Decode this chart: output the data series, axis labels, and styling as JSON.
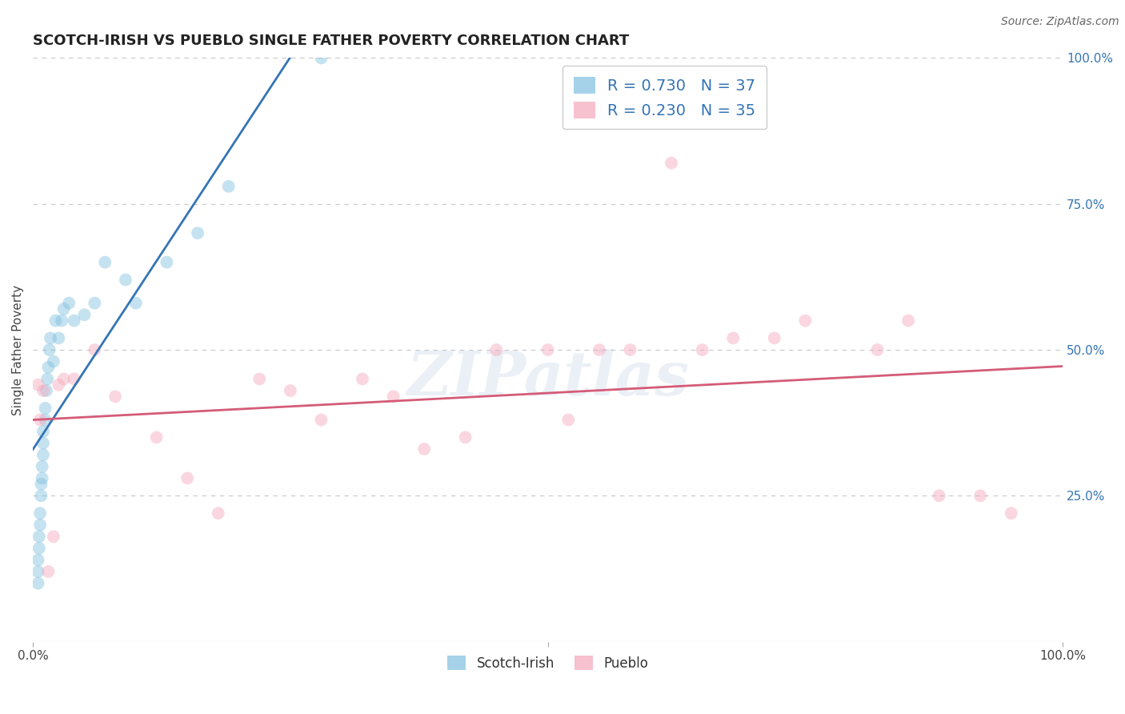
{
  "title": "SCOTCH-IRISH VS PUEBLO SINGLE FATHER POVERTY CORRELATION CHART",
  "source": "Source: ZipAtlas.com",
  "ylabel": "Single Father Poverty",
  "watermark": "ZIPatlas",
  "xmin": 0.0,
  "xmax": 1.0,
  "ymin": 0.0,
  "ymax": 1.0,
  "ytick_right_labels": [
    "100.0%",
    "75.0%",
    "50.0%",
    "25.0%"
  ],
  "ytick_right_vals": [
    1.0,
    0.75,
    0.5,
    0.25
  ],
  "scotch_irish_color": "#7fbfdf",
  "pueblo_color": "#f4a7bc",
  "trend_scotch_color": "#3575b5",
  "trend_pueblo_color": "#d45c78",
  "R_scotch": 0.73,
  "N_scotch": 37,
  "R_pueblo": 0.23,
  "N_pueblo": 35,
  "scotch_irish_x": [
    0.005,
    0.005,
    0.005,
    0.006,
    0.006,
    0.007,
    0.007,
    0.008,
    0.008,
    0.009,
    0.009,
    0.01,
    0.01,
    0.01,
    0.012,
    0.012,
    0.013,
    0.014,
    0.015,
    0.016,
    0.017,
    0.02,
    0.022,
    0.025,
    0.028,
    0.03,
    0.035,
    0.04,
    0.05,
    0.06,
    0.07,
    0.09,
    0.1,
    0.13,
    0.16,
    0.19,
    0.28
  ],
  "scotch_irish_y": [
    0.1,
    0.12,
    0.14,
    0.16,
    0.18,
    0.2,
    0.22,
    0.25,
    0.27,
    0.28,
    0.3,
    0.32,
    0.34,
    0.36,
    0.38,
    0.4,
    0.43,
    0.45,
    0.47,
    0.5,
    0.52,
    0.48,
    0.55,
    0.52,
    0.55,
    0.57,
    0.58,
    0.55,
    0.56,
    0.58,
    0.65,
    0.62,
    0.58,
    0.65,
    0.7,
    0.78,
    1.0
  ],
  "pueblo_x": [
    0.005,
    0.007,
    0.01,
    0.015,
    0.02,
    0.025,
    0.03,
    0.04,
    0.06,
    0.08,
    0.12,
    0.15,
    0.18,
    0.22,
    0.25,
    0.28,
    0.32,
    0.35,
    0.38,
    0.42,
    0.45,
    0.5,
    0.52,
    0.55,
    0.58,
    0.62,
    0.65,
    0.68,
    0.72,
    0.75,
    0.82,
    0.85,
    0.88,
    0.92,
    0.95
  ],
  "pueblo_y": [
    0.44,
    0.38,
    0.43,
    0.12,
    0.18,
    0.44,
    0.45,
    0.45,
    0.5,
    0.42,
    0.35,
    0.28,
    0.22,
    0.45,
    0.43,
    0.38,
    0.45,
    0.42,
    0.33,
    0.35,
    0.5,
    0.5,
    0.38,
    0.5,
    0.5,
    0.82,
    0.5,
    0.52,
    0.52,
    0.55,
    0.5,
    0.55,
    0.25,
    0.25,
    0.22
  ],
  "grid_color": "#c8c8c8",
  "background_color": "#ffffff",
  "dot_size": 130,
  "dot_alpha": 0.45,
  "title_fontsize": 13,
  "legend_fontsize": 14,
  "source_fontsize": 10,
  "ylabel_fontsize": 11,
  "tick_fontsize": 11
}
